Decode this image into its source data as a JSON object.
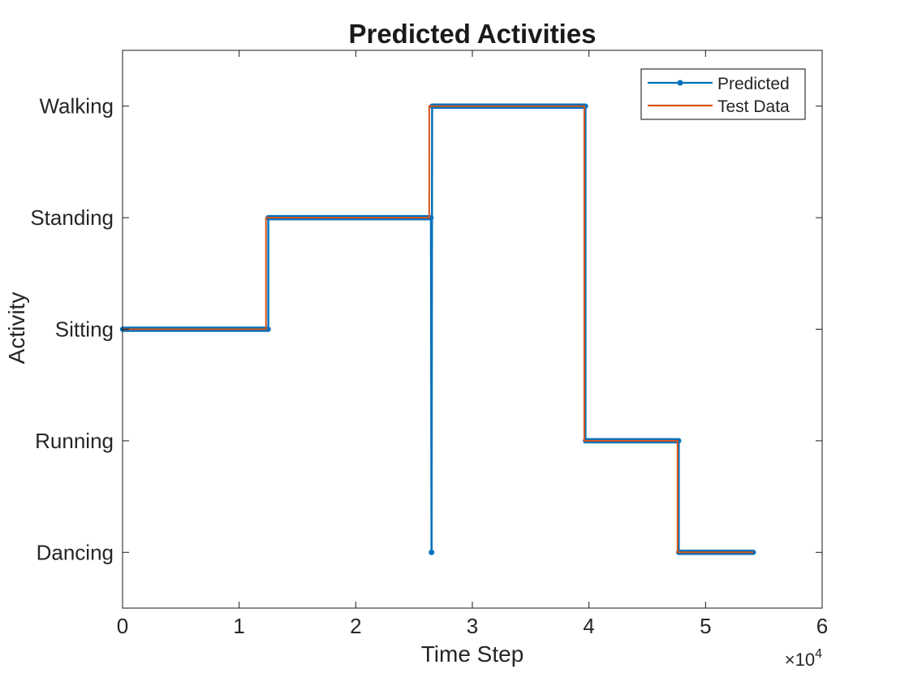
{
  "figure": {
    "background": "#ffffff",
    "axis_color": "#1a1a1a",
    "text_color": "#262626"
  },
  "chart_data": {
    "type": "line",
    "step": true,
    "title": "Predicted Activities",
    "xlabel": "Time Step",
    "ylabel": "Activity",
    "grid": false,
    "x_axis": {
      "range": [
        0,
        60000
      ],
      "tick_values": [
        0,
        10000,
        20000,
        30000,
        40000,
        50000,
        60000
      ],
      "tick_labels": [
        "0",
        "1",
        "2",
        "3",
        "4",
        "5",
        "6"
      ],
      "multiplier": {
        "prefix": "×10",
        "exponent": "4"
      }
    },
    "y_axis": {
      "range": [
        0.5,
        5.5
      ],
      "categories": [
        {
          "value": 1,
          "label": "Dancing"
        },
        {
          "value": 2,
          "label": "Running"
        },
        {
          "value": 3,
          "label": "Sitting"
        },
        {
          "value": 4,
          "label": "Standing"
        },
        {
          "value": 5,
          "label": "Walking"
        }
      ]
    },
    "series": [
      {
        "name": "Predicted",
        "color": "#0072BD",
        "marker": "dot",
        "line_width": 2.5,
        "marker_band_width": 6.5,
        "points": [
          [
            0,
            3
          ],
          [
            12500,
            3
          ],
          [
            12500,
            4
          ],
          [
            26450,
            4
          ],
          [
            26500,
            1
          ],
          [
            26550,
            5
          ],
          [
            39700,
            5
          ],
          [
            39700,
            2
          ],
          [
            47700,
            2
          ],
          [
            47700,
            1
          ],
          [
            54100,
            1
          ]
        ],
        "outlier_marker": [
          26500,
          1
        ]
      },
      {
        "name": "Test Data",
        "color": "#D95319",
        "marker": "none",
        "line_width": 2,
        "points": [
          [
            0,
            3
          ],
          [
            12300,
            3
          ],
          [
            12300,
            4
          ],
          [
            26300,
            4
          ],
          [
            26300,
            5
          ],
          [
            39600,
            5
          ],
          [
            39600,
            2
          ],
          [
            47600,
            2
          ],
          [
            47600,
            1
          ],
          [
            54100,
            1
          ]
        ]
      }
    ],
    "legend": {
      "position": "top-right",
      "entries": [
        "Predicted",
        "Test Data"
      ]
    }
  }
}
